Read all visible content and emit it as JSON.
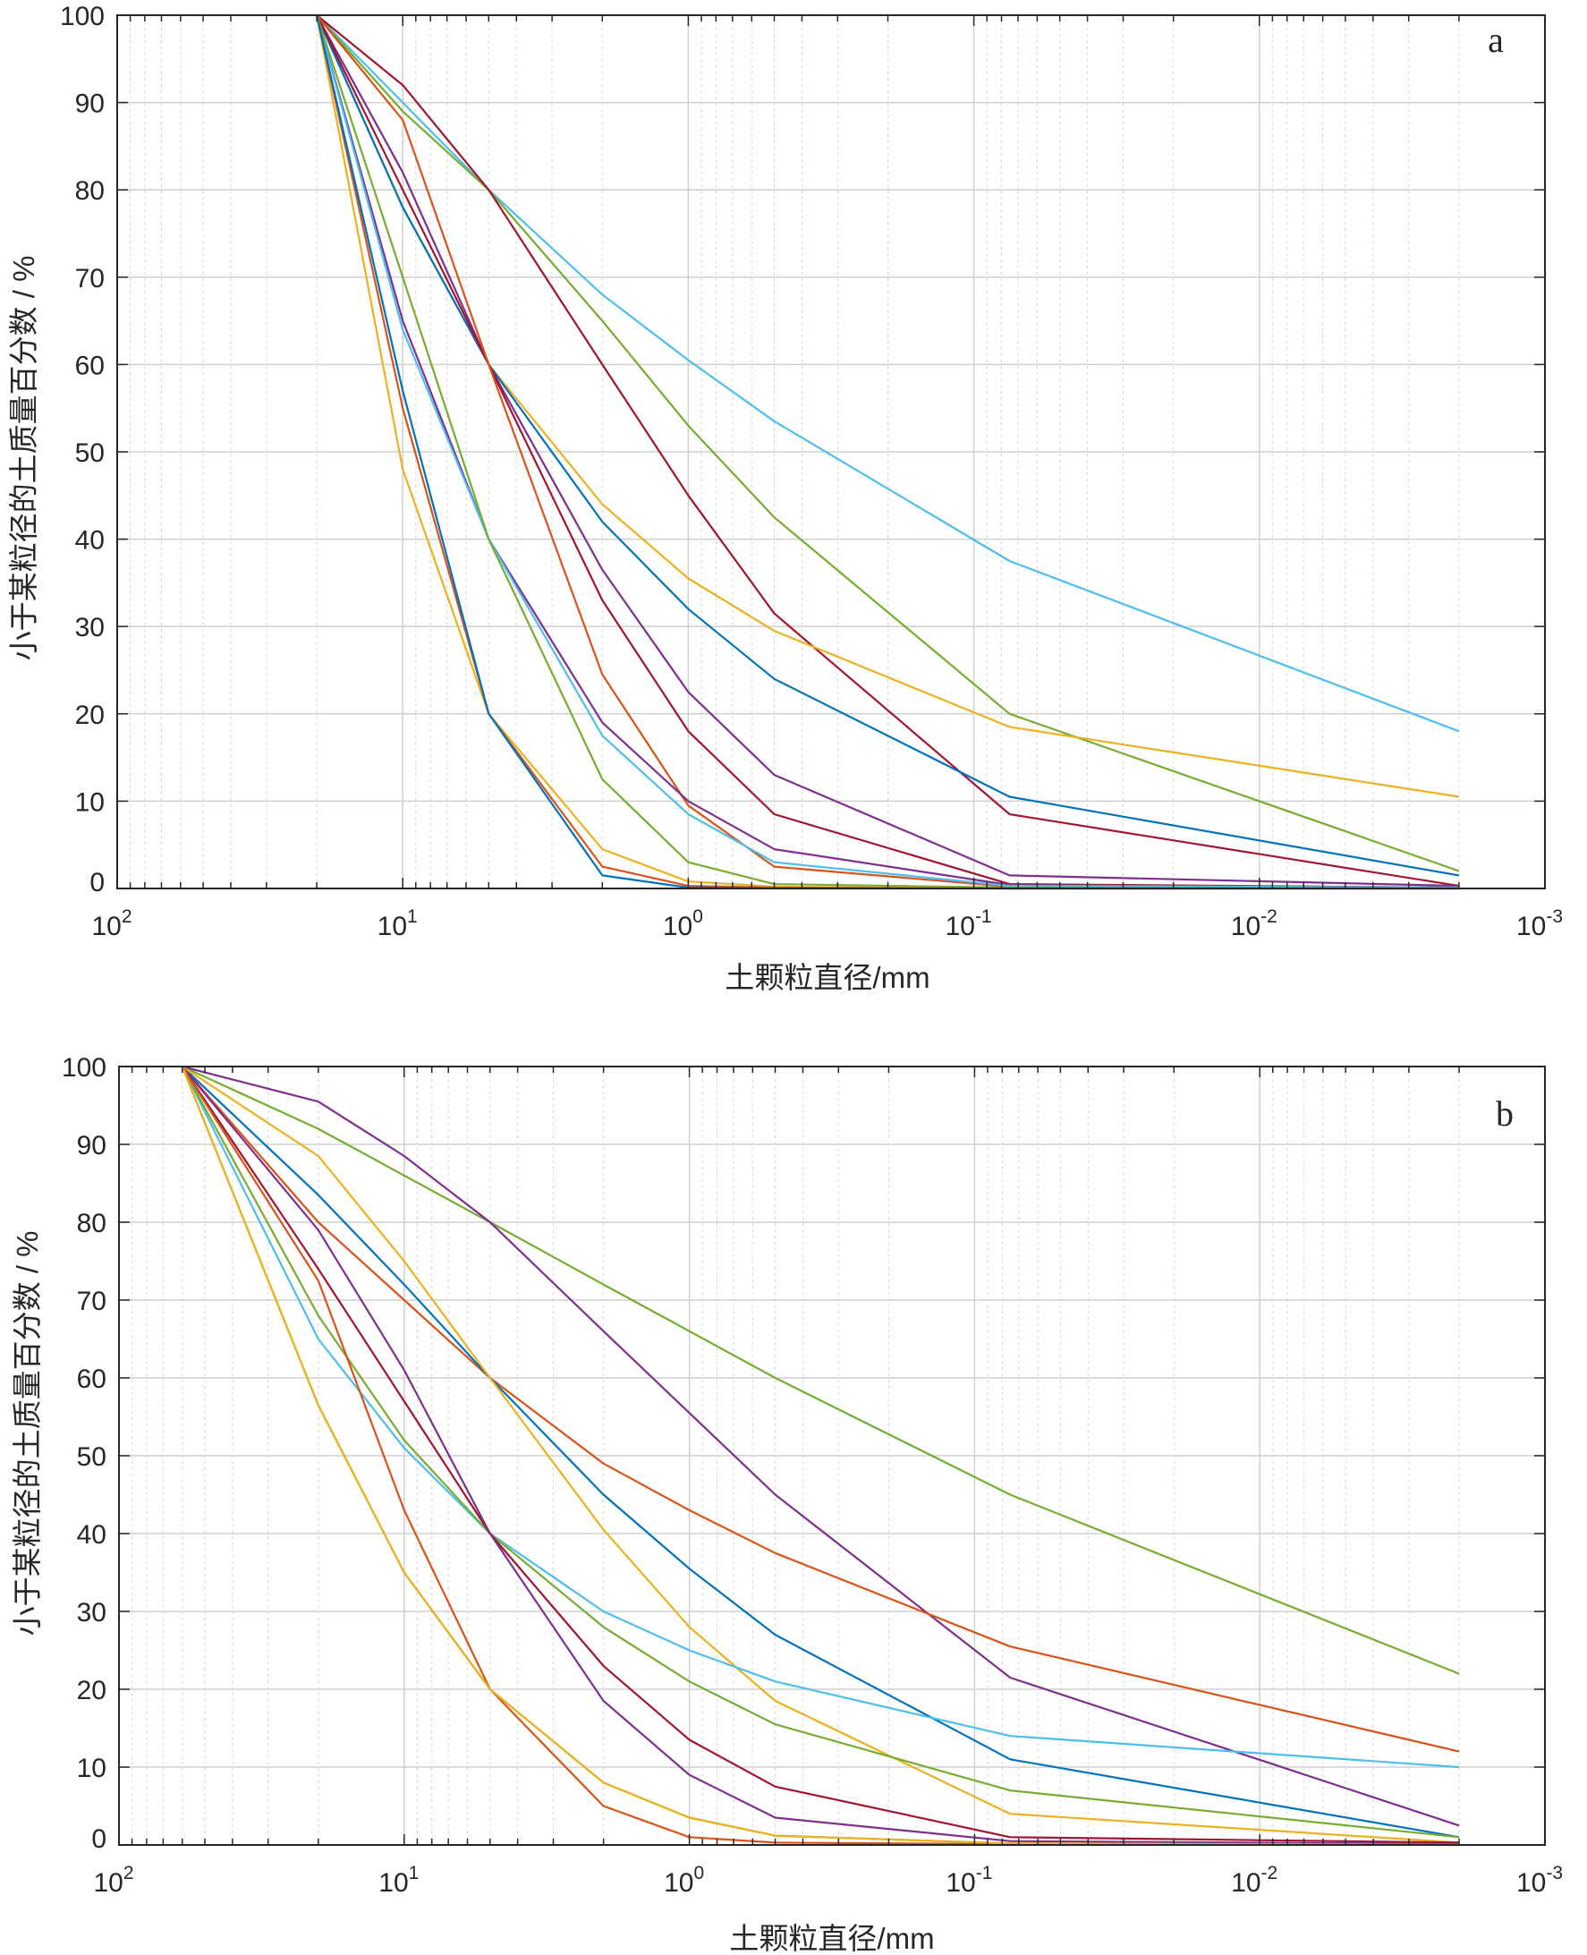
{
  "chart_data": [
    {
      "type": "line",
      "panel_label": "a",
      "xlabel": "土颗粒直径/mm",
      "ylabel": "小于某粒径的土质量百分数 / %",
      "x_scale": "log",
      "x_reversed": true,
      "xlim": [
        100,
        0.001
      ],
      "ylim": [
        0,
        100
      ],
      "grid": true,
      "x_ticks": [
        100,
        10,
        1,
        0.1,
        0.01,
        0.001
      ],
      "x_tick_labels": [
        {
          "base": "10",
          "exp": "2"
        },
        {
          "base": "10",
          "exp": "1"
        },
        {
          "base": "10",
          "exp": "0"
        },
        {
          "base": "10",
          "exp": "-1"
        },
        {
          "base": "10",
          "exp": "-2"
        },
        {
          "base": "10",
          "exp": "-3"
        }
      ],
      "y_ticks": [
        0,
        10,
        20,
        30,
        40,
        50,
        60,
        70,
        80,
        90,
        100
      ],
      "y_tick_labels": [
        "0",
        "10",
        "20",
        "30",
        "40",
        "50",
        "60",
        "70",
        "80",
        "90",
        "100"
      ],
      "x": [
        20,
        10,
        5,
        2,
        1,
        0.5,
        0.075,
        0.002
      ],
      "series": [
        {
          "color": "#4DBEEE",
          "values": [
            100,
            90,
            80,
            68,
            60.5,
            53.5,
            37.5,
            18
          ]
        },
        {
          "color": "#77AC30",
          "values": [
            100,
            89,
            80,
            65,
            53,
            42.5,
            20,
            2
          ]
        },
        {
          "color": "#A2142F",
          "values": [
            100,
            92,
            80,
            60,
            45,
            31.5,
            8.5,
            0.3
          ]
        },
        {
          "color": "#EDB120",
          "values": [
            100,
            78,
            60,
            44,
            35.5,
            29.5,
            18.5,
            10.5
          ]
        },
        {
          "color": "#0072BD",
          "values": [
            100,
            78,
            60,
            42,
            32,
            24,
            10.5,
            1.5
          ]
        },
        {
          "color": "#7E2F8E",
          "values": [
            100,
            82,
            60,
            36.5,
            22.5,
            13,
            1.5,
            0.3
          ]
        },
        {
          "color": "#A2142F",
          "values": [
            100,
            80,
            60,
            33,
            18,
            8.5,
            0.5,
            0.1
          ]
        },
        {
          "color": "#D95319",
          "values": [
            100,
            88,
            60,
            24.5,
            9.5,
            2.5,
            0.2,
            0.1
          ]
        },
        {
          "color": "#7E2F8E",
          "values": [
            100,
            65,
            40,
            19,
            10,
            4.5,
            0.4,
            0.1
          ]
        },
        {
          "color": "#4DBEEE",
          "values": [
            100,
            64,
            40,
            17.5,
            8.5,
            3,
            0.3,
            0.1
          ]
        },
        {
          "color": "#77AC30",
          "values": [
            100,
            70,
            40,
            12.5,
            3,
            0.5,
            0.1,
            0
          ]
        },
        {
          "color": "#EDB120",
          "values": [
            100,
            48,
            20,
            4.5,
            0.8,
            0.2,
            0,
            0
          ]
        },
        {
          "color": "#D95319",
          "values": [
            100,
            55,
            20,
            2.5,
            0.3,
            0.1,
            0,
            0
          ]
        },
        {
          "color": "#0072BD",
          "values": [
            100,
            57,
            20,
            1.5,
            0.1,
            0,
            0,
            0
          ]
        }
      ]
    },
    {
      "type": "line",
      "panel_label": "b",
      "xlabel": "土颗粒直径/mm",
      "ylabel": "小于某粒径的土质量百分数 / %",
      "x_scale": "log",
      "x_reversed": true,
      "xlim": [
        100,
        0.001
      ],
      "ylim": [
        0,
        100
      ],
      "grid": true,
      "x_ticks": [
        100,
        10,
        1,
        0.1,
        0.01,
        0.001
      ],
      "x_tick_labels": [
        {
          "base": "10",
          "exp": "2"
        },
        {
          "base": "10",
          "exp": "1"
        },
        {
          "base": "10",
          "exp": "0"
        },
        {
          "base": "10",
          "exp": "-1"
        },
        {
          "base": "10",
          "exp": "-2"
        },
        {
          "base": "10",
          "exp": "-3"
        }
      ],
      "y_ticks": [
        0,
        10,
        20,
        30,
        40,
        50,
        60,
        70,
        80,
        90,
        100
      ],
      "y_tick_labels": [
        "0",
        "10",
        "20",
        "30",
        "40",
        "50",
        "60",
        "70",
        "80",
        "90",
        "100"
      ],
      "x": [
        60,
        20,
        10,
        5,
        2,
        1,
        0.5,
        0.075,
        0.002
      ],
      "series": [
        {
          "color": "#77AC30",
          "values": [
            100,
            92,
            86,
            80,
            72,
            66,
            60,
            45,
            22
          ]
        },
        {
          "color": "#7E2F8E",
          "values": [
            100,
            95.5,
            88.5,
            80,
            66,
            55.5,
            45,
            21.5,
            2.5
          ]
        },
        {
          "color": "#D95319",
          "values": [
            100,
            80,
            70,
            60,
            49,
            43,
            37.5,
            25.5,
            12
          ]
        },
        {
          "color": "#0072BD",
          "values": [
            100,
            83.5,
            72,
            60,
            45,
            35.5,
            27,
            11,
            1
          ]
        },
        {
          "color": "#EDB120",
          "values": [
            100,
            88.5,
            75,
            60,
            40.5,
            28,
            18.5,
            4,
            0.3
          ]
        },
        {
          "color": "#4DBEEE",
          "values": [
            100,
            65,
            51,
            40,
            30,
            25,
            21,
            14,
            10
          ]
        },
        {
          "color": "#77AC30",
          "values": [
            100,
            68,
            52,
            40,
            28,
            21,
            15.5,
            7,
            1
          ]
        },
        {
          "color": "#A2142F",
          "values": [
            100,
            74,
            57,
            40,
            23,
            13.5,
            7.5,
            1,
            0.3
          ]
        },
        {
          "color": "#7E2F8E",
          "values": [
            100,
            79,
            61,
            40,
            18.5,
            9,
            3.5,
            0.5,
            0.1
          ]
        },
        {
          "color": "#D95319",
          "values": [
            100,
            72.5,
            43,
            20,
            5,
            1,
            0.3,
            0.1,
            0
          ]
        },
        {
          "color": "#77AC30",
          "values": [
            100,
            56.5,
            35,
            20,
            8,
            3.5,
            1.2,
            0.2,
            0
          ]
        },
        {
          "color": "#EDB120",
          "values": [
            100,
            56.5,
            35,
            20,
            8,
            3.5,
            1.2,
            0.2,
            0
          ]
        }
      ]
    }
  ]
}
